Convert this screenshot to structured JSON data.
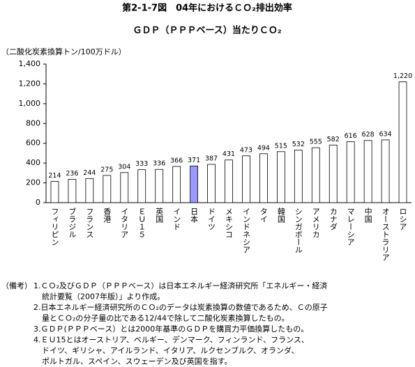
{
  "chart_data": {
    "type": "bar",
    "title": "第2-1-7図　04年におけるＣＯ₂排出効率",
    "subtitle": "ＧＤＰ（ＰＰＰベース）当たりＣＯ₂",
    "y_label": "（二酸化炭素換算トン/100万ドル）",
    "categories": [
      "フィリピン",
      "ブラジル",
      "フランス",
      "香港",
      "イタリア",
      "ＥＵ１５",
      "英国",
      "インド",
      "日本",
      "ドイツ",
      "メキシコ",
      "インドネシア",
      "タイ",
      "韓国",
      "シンガポール",
      "アメリカ",
      "カナダ",
      "マレーシア",
      "中国",
      "オーストラリア",
      "ロシア"
    ],
    "values": [
      214,
      236,
      244,
      275,
      304,
      333,
      336,
      366,
      371,
      387,
      431,
      473,
      494,
      515,
      532,
      555,
      582,
      616,
      628,
      634,
      1220
    ],
    "value_labels": [
      "214",
      "236",
      "244",
      "275",
      "304",
      "333",
      "336",
      "366",
      "371",
      "387",
      "431",
      "473",
      "494",
      "515",
      "532",
      "555",
      "582",
      "616",
      "628",
      "634",
      "1,220"
    ],
    "colors": [
      "#ffffff",
      "#ffffff",
      "#ffffff",
      "#ffffff",
      "#ffffff",
      "#ffffff",
      "#ffffff",
      "#ffffff",
      "#9999ff",
      "#ffffff",
      "#ffffff",
      "#ffffff",
      "#ffffff",
      "#ffffff",
      "#ffffff",
      "#ffffff",
      "#ffffff",
      "#ffffff",
      "#ffffff",
      "#ffffff",
      "#ffffff"
    ],
    "ylim": [
      0,
      1400
    ],
    "yticks": [
      0,
      200,
      400,
      600,
      800,
      {
        "value": 1000,
        "label": "1,000"
      },
      {
        "value": 1200,
        "label": "1,200"
      },
      {
        "value": 1400,
        "label": "1,400"
      }
    ],
    "grid": false
  },
  "notes": {
    "label": "（備考）",
    "items": [
      [
        "1.ＣＯ₂及びＧＤＰ（ＰＰＰベース）は日本エネルギー経済研究所「エネルギー・経済",
        "統計要覧（2007年版）」より作成。"
      ],
      [
        "2.日本エネルギー経済研究所のＣＯ₂のデータは炭素換算の数値であるため、Ｃの原子",
        "量とＣＯ₂の分子量の比である12/44で除して二酸化炭素換算したもの。"
      ],
      [
        "3.ＧＤＰ(ＰＰＰベース）とは2000年基準のＧＤＰを購買力平価換算したもの。"
      ],
      [
        "4.ＥＵ15とはオーストリア、ベルギー、デンマーク、フィンランド、フランス、",
        "ドイツ、ギリシャ、アイルランド、イタリア、ルクセンブルク、オランダ、",
        "ポルトガル、スペイン、スウェーデン及び英国を指す。"
      ]
    ]
  }
}
